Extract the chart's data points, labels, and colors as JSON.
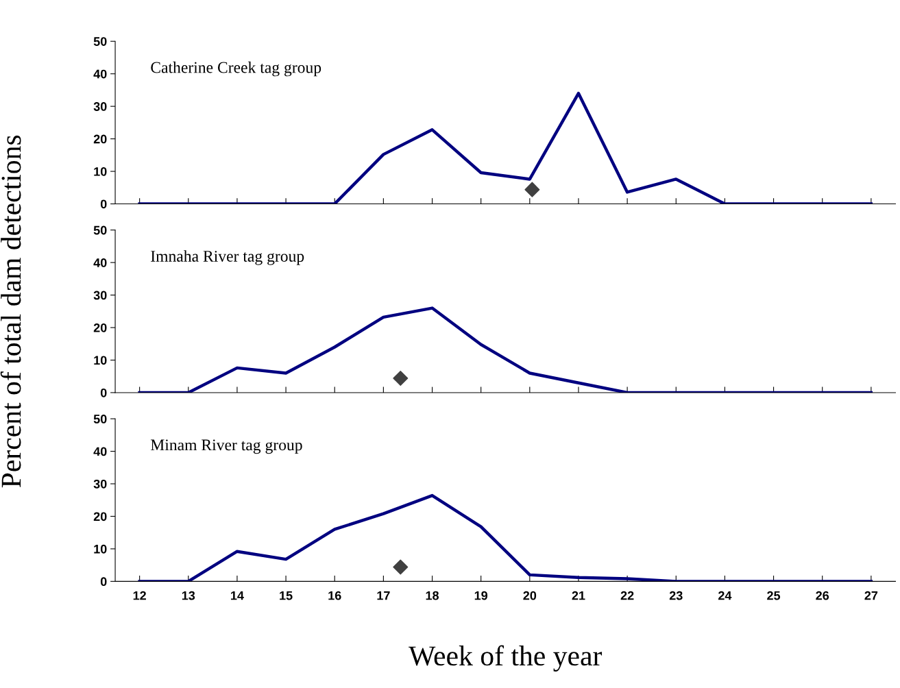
{
  "chart_data": [
    {
      "type": "line",
      "annotations": [
        "Catherine Creek tag group"
      ],
      "xlim": [
        11.5,
        27.5
      ],
      "xticks": [
        12,
        13,
        14,
        15,
        16,
        17,
        18,
        19,
        20,
        21,
        22,
        23,
        24,
        25,
        26,
        27
      ],
      "ylim": [
        0,
        50
      ],
      "yticks": [
        0,
        10,
        20,
        30,
        40,
        50
      ],
      "tick_labels": "y",
      "grid": false,
      "legend": false,
      "series": [
        {
          "color": "#000080",
          "marker": "none",
          "line_style": "solid",
          "x": [
            12,
            13,
            14,
            15,
            16,
            17,
            18,
            19,
            20,
            21,
            22,
            23,
            24,
            25,
            26,
            27
          ],
          "values": [
            0,
            0,
            0,
            0,
            0,
            15.2,
            22.8,
            9.6,
            7.6,
            34,
            3.6,
            7.6,
            0,
            0,
            0,
            0
          ]
        },
        {
          "type": "scatter",
          "color": "#404040",
          "marker": "diamond",
          "x": [
            20.05
          ],
          "values": [
            4.4
          ]
        }
      ]
    },
    {
      "type": "line",
      "annotations": [
        "Imnaha River tag group"
      ],
      "ylabel": "Percent of total dam detections",
      "xlim": [
        11.5,
        27.5
      ],
      "xticks": [
        12,
        13,
        14,
        15,
        16,
        17,
        18,
        19,
        20,
        21,
        22,
        23,
        24,
        25,
        26,
        27
      ],
      "ylim": [
        0,
        50
      ],
      "yticks": [
        0,
        10,
        20,
        30,
        40,
        50
      ],
      "tick_labels": "y",
      "grid": false,
      "legend": false,
      "series": [
        {
          "color": "#000080",
          "marker": "none",
          "line_style": "solid",
          "x": [
            12,
            13,
            14,
            15,
            16,
            17,
            18,
            19,
            20,
            21,
            22,
            23,
            24,
            25,
            26,
            27
          ],
          "values": [
            0,
            0,
            7.6,
            6,
            14,
            23.2,
            26,
            14.8,
            6,
            3,
            0,
            0,
            0,
            0,
            0,
            0
          ]
        },
        {
          "type": "scatter",
          "color": "#404040",
          "marker": "diamond",
          "x": [
            17.35
          ],
          "values": [
            4.4
          ]
        }
      ]
    },
    {
      "type": "line",
      "annotations": [
        "Minam River tag group"
      ],
      "xlabel": "Week of the year",
      "xlim": [
        11.5,
        27.5
      ],
      "xticks": [
        12,
        13,
        14,
        15,
        16,
        17,
        18,
        19,
        20,
        21,
        22,
        23,
        24,
        25,
        26,
        27
      ],
      "ylim": [
        0,
        50
      ],
      "yticks": [
        0,
        10,
        20,
        30,
        40,
        50
      ],
      "grid": false,
      "legend": false,
      "series": [
        {
          "color": "#000080",
          "marker": "none",
          "line_style": "solid",
          "x": [
            12,
            13,
            14,
            15,
            16,
            17,
            18,
            19,
            20,
            21,
            22,
            23,
            24,
            25,
            26,
            27
          ],
          "values": [
            0,
            0,
            9.2,
            6.8,
            16,
            20.8,
            26.4,
            16.8,
            2,
            1.2,
            0.8,
            0,
            0,
            0,
            0,
            0
          ]
        },
        {
          "type": "scatter",
          "color": "#404040",
          "marker": "diamond",
          "x": [
            17.35
          ],
          "values": [
            4.4
          ]
        }
      ]
    }
  ]
}
